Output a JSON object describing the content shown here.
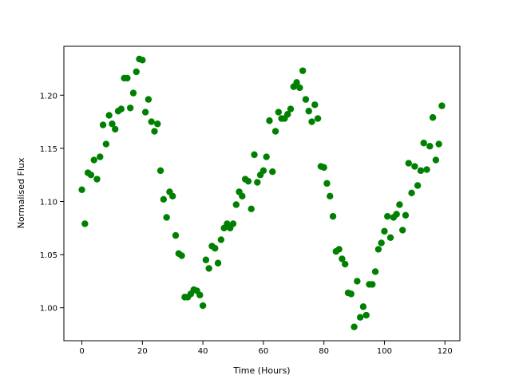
{
  "chart_data": {
    "type": "scatter",
    "xlabel": "Time (Hours)",
    "ylabel": "Normalised Flux",
    "color": "#008000",
    "xlim": [
      -5.95,
      124.95
    ],
    "ylim": [
      0.969,
      1.246
    ],
    "xticks": [
      0,
      20,
      40,
      60,
      80,
      100,
      120
    ],
    "yticks": [
      {
        "value": 1.0,
        "label": "1.00"
      },
      1.05,
      {
        "value": 1.1,
        "label": "1.10"
      },
      1.15,
      {
        "value": 1.2,
        "label": "1.20"
      }
    ],
    "x": [
      0,
      1,
      2,
      3,
      4,
      5,
      6,
      7,
      8,
      9,
      10,
      11,
      12,
      13,
      14,
      15,
      16,
      17,
      18,
      19,
      20,
      21,
      22,
      23,
      24,
      25,
      26,
      27,
      28,
      29,
      30,
      31,
      32,
      33,
      34,
      35,
      36,
      37,
      38,
      39,
      40,
      41,
      42,
      43,
      44,
      45,
      46,
      47,
      48,
      49,
      50,
      51,
      52,
      53,
      54,
      55,
      56,
      57,
      58,
      59,
      60,
      61,
      62,
      63,
      64,
      65,
      66,
      67,
      68,
      69,
      70,
      71,
      72,
      73,
      74,
      75,
      76,
      77,
      78,
      79,
      80,
      81,
      82,
      83,
      84,
      85,
      86,
      87,
      88,
      89,
      90,
      91,
      92,
      93,
      94,
      95,
      96,
      97,
      98,
      99,
      100,
      101,
      102,
      103,
      104,
      105,
      106,
      107,
      108,
      109,
      110,
      111,
      112,
      113,
      114,
      115,
      116,
      117,
      118,
      119
    ],
    "values": [
      1.111,
      1.079,
      1.127,
      1.125,
      1.139,
      1.121,
      1.142,
      1.172,
      1.154,
      1.181,
      1.173,
      1.168,
      1.185,
      1.187,
      1.216,
      1.216,
      1.188,
      1.202,
      1.222,
      1.234,
      1.233,
      1.184,
      1.196,
      1.175,
      1.166,
      1.173,
      1.129,
      1.102,
      1.085,
      1.109,
      1.105,
      1.068,
      1.051,
      1.049,
      1.01,
      1.01,
      1.013,
      1.017,
      1.016,
      1.012,
      1.002,
      1.045,
      1.037,
      1.058,
      1.056,
      1.042,
      1.064,
      1.075,
      1.079,
      1.075,
      1.079,
      1.097,
      1.109,
      1.105,
      1.121,
      1.119,
      1.093,
      1.144,
      1.118,
      1.125,
      1.129,
      1.142,
      1.176,
      1.128,
      1.166,
      1.184,
      1.178,
      1.178,
      1.182,
      1.187,
      1.208,
      1.212,
      1.207,
      1.223,
      1.196,
      1.185,
      1.175,
      1.191,
      1.178,
      1.133,
      1.132,
      1.117,
      1.105,
      1.086,
      1.053,
      1.055,
      1.046,
      1.041,
      1.014,
      1.013,
      0.982,
      1.025,
      0.991,
      1.001,
      0.993,
      1.022,
      1.022,
      1.034,
      1.055,
      1.061,
      1.072,
      1.086,
      1.066,
      1.085,
      1.088,
      1.097,
      1.073,
      1.087,
      1.136,
      1.108,
      1.133,
      1.115,
      1.129,
      1.155,
      1.13,
      1.152,
      1.179,
      1.139,
      1.154,
      1.19
    ]
  }
}
